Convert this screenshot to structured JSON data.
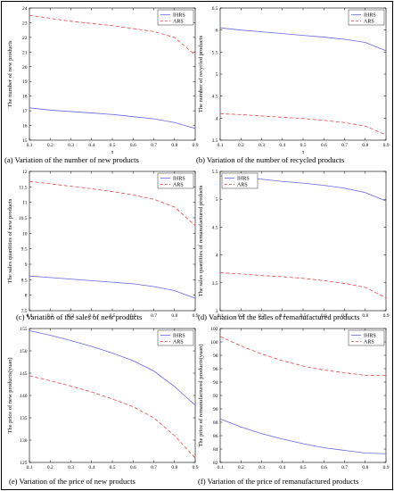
{
  "colors": {
    "ihrs": "#6666ee",
    "ars": "#ee4444"
  },
  "chart_data": [
    {
      "type": "line",
      "caption": "(a)   Variation of the number of new products",
      "xlabel": "τ",
      "ylabel": "The number of new products",
      "x": [
        0.1,
        0.2,
        0.3,
        0.4,
        0.5,
        0.6,
        0.7,
        0.8,
        0.9
      ],
      "xlim": [
        0.1,
        0.9
      ],
      "ylim": [
        15,
        24
      ],
      "xticks": [
        "0.1",
        "0.2",
        "0.3",
        "0.4",
        "0.5",
        "0.6",
        "0.7",
        "0.8",
        "0.9"
      ],
      "yticks": [
        "15",
        "16",
        "17",
        "18",
        "19",
        "20",
        "21",
        "22",
        "23",
        "24"
      ],
      "legend_position": "top-right",
      "series": [
        {
          "name": "IHRS",
          "values": [
            17.2,
            17.05,
            16.95,
            16.85,
            16.75,
            16.6,
            16.45,
            16.2,
            15.8
          ]
        },
        {
          "name": "ARS",
          "values": [
            23.5,
            23.3,
            23.1,
            22.95,
            22.8,
            22.6,
            22.4,
            22.0,
            20.8
          ]
        }
      ]
    },
    {
      "type": "line",
      "caption": "(b)   Variation of the number of recycled products",
      "xlabel": "τ",
      "ylabel": "The number of recycled products",
      "x": [
        0.1,
        0.2,
        0.3,
        0.4,
        0.5,
        0.6,
        0.7,
        0.8,
        0.9
      ],
      "xlim": [
        0.1,
        0.9
      ],
      "ylim": [
        3.5,
        6.5
      ],
      "xticks": [
        "0.1",
        "0.2",
        "0.3",
        "0.4",
        "0.5",
        "0.6",
        "0.7",
        "0.8",
        "0.9"
      ],
      "yticks": [
        "3.5",
        "4",
        "4.5",
        "5",
        "5.5",
        "6",
        "6.5"
      ],
      "legend_position": "top-right",
      "series": [
        {
          "name": "IHRS",
          "values": [
            6.05,
            6.0,
            5.96,
            5.92,
            5.88,
            5.84,
            5.79,
            5.72,
            5.53
          ]
        },
        {
          "name": "ARS",
          "values": [
            4.1,
            4.08,
            4.05,
            4.02,
            3.99,
            3.95,
            3.9,
            3.82,
            3.62
          ]
        }
      ]
    },
    {
      "type": "line",
      "caption": "(c)    Variation of the sales of new products",
      "xlabel": "",
      "ylabel": "The sales quantities of new products",
      "x": [
        0.1,
        0.2,
        0.3,
        0.4,
        0.5,
        0.6,
        0.7,
        0.8,
        0.9
      ],
      "xlim": [
        0.1,
        0.9
      ],
      "ylim": [
        7.5,
        12
      ],
      "xticks": [
        "0.1",
        "0.2",
        "0.3",
        "0.4",
        "0.5",
        "0.6",
        "0.7",
        "0.8",
        "0.9"
      ],
      "yticks": [
        "7.5",
        "8",
        "8.5",
        "9",
        "9.5",
        "10",
        "10.5",
        "11",
        "11.5",
        "12"
      ],
      "legend_position": "top-right",
      "series": [
        {
          "name": "IHRS",
          "values": [
            8.62,
            8.57,
            8.52,
            8.47,
            8.42,
            8.37,
            8.28,
            8.15,
            7.9
          ]
        },
        {
          "name": "ARS",
          "values": [
            11.68,
            11.6,
            11.52,
            11.44,
            11.35,
            11.24,
            11.1,
            10.85,
            10.25
          ]
        }
      ]
    },
    {
      "type": "line",
      "caption": "(d)   Variation of the sales of remanufactured products",
      "xlabel": "",
      "ylabel": "The sales quantities of remanufactured products",
      "x": [
        0.1,
        0.2,
        0.3,
        0.4,
        0.5,
        0.6,
        0.7,
        0.8,
        0.9
      ],
      "xlim": [
        0.1,
        0.9
      ],
      "ylim": [
        3,
        5.5
      ],
      "xticks": [
        "0.1",
        "0.2",
        "0.3",
        "0.4",
        "0.5",
        "0.6",
        "0.7",
        "0.8",
        "0.9"
      ],
      "yticks": [
        "3",
        "3.5",
        "4",
        "4.5",
        "5",
        "5.5"
      ],
      "legend_position": "top-left",
      "series": [
        {
          "name": "IHRS",
          "values": [
            5.42,
            5.39,
            5.36,
            5.32,
            5.29,
            5.25,
            5.2,
            5.12,
            4.97
          ]
        },
        {
          "name": "ARS",
          "values": [
            3.68,
            3.66,
            3.63,
            3.61,
            3.58,
            3.54,
            3.49,
            3.42,
            3.23
          ]
        }
      ]
    },
    {
      "type": "line",
      "caption": "(e) Variation of the price of new products",
      "xlabel": "",
      "ylabel": "The price of new products(yuan)",
      "x": [
        0.1,
        0.2,
        0.3,
        0.4,
        0.5,
        0.6,
        0.7,
        0.8,
        0.9
      ],
      "xlim": [
        0.1,
        0.9
      ],
      "ylim": [
        125,
        155
      ],
      "xticks": [
        "0.1",
        "0.2",
        "0.3",
        "0.4",
        "0.5",
        "0.6",
        "0.7",
        "0.8",
        "0.9"
      ],
      "yticks": [
        "125",
        "130",
        "135",
        "140",
        "145",
        "150",
        "155"
      ],
      "legend_position": "top-right",
      "series": [
        {
          "name": "IHRS",
          "values": [
            154.5,
            153.5,
            152.3,
            151.0,
            149.5,
            147.8,
            145.5,
            142.0,
            137.8
          ]
        },
        {
          "name": "ARS",
          "values": [
            144.4,
            143.3,
            142.1,
            140.8,
            139.2,
            137.5,
            135.0,
            131.0,
            126.0
          ]
        }
      ]
    },
    {
      "type": "line",
      "caption": "(f) Variation of the price of remanufactured products",
      "xlabel": "",
      "ylabel": "The price of remanufactured products(yuan)",
      "x": [
        0.1,
        0.2,
        0.3,
        0.4,
        0.5,
        0.6,
        0.7,
        0.8,
        0.9
      ],
      "xlim": [
        0.1,
        0.9
      ],
      "ylim": [
        82,
        102
      ],
      "xticks": [
        "0.1",
        "0.2",
        "0.3",
        "0.4",
        "0.5",
        "0.6",
        "0.7",
        "0.8",
        "0.9"
      ],
      "yticks": [
        "82",
        "84",
        "86",
        "88",
        "90",
        "92",
        "94",
        "96",
        "98",
        "100",
        "102"
      ],
      "legend_position": "top-right",
      "series": [
        {
          "name": "IHRS",
          "values": [
            88.5,
            87.3,
            86.3,
            85.5,
            84.8,
            84.2,
            83.8,
            83.4,
            83.3
          ]
        },
        {
          "name": "ARS",
          "values": [
            100.8,
            99.4,
            98.2,
            97.2,
            96.4,
            95.8,
            95.4,
            95.0,
            95.0
          ]
        }
      ]
    }
  ]
}
